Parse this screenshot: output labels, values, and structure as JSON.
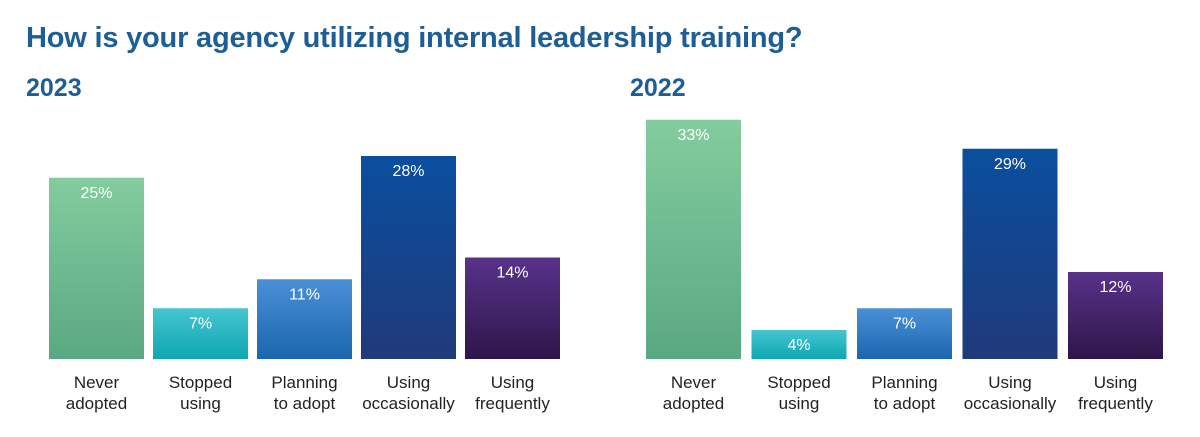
{
  "title": "How is your agency utilizing internal leadership training?",
  "colors": {
    "title": "#1d5e96",
    "never_adopted": [
      "#84cc9e",
      "#5aa883"
    ],
    "stopped_using": [
      "#45c6cf",
      "#0fa6b3"
    ],
    "planning_to_adopt": [
      "#4a90d6",
      "#1b66b0"
    ],
    "using_occasionally": [
      "#0a4f9f",
      "#203a7a"
    ],
    "using_frequently": [
      "#58328a",
      "#2e164a"
    ]
  },
  "chart_data": [
    {
      "type": "bar",
      "title": "2023",
      "categories": [
        [
          "Never",
          "adopted"
        ],
        [
          "Stopped",
          "using"
        ],
        [
          "Planning",
          "to adopt"
        ],
        [
          "Using",
          "occasionally"
        ],
        [
          "Using",
          "frequently"
        ]
      ],
      "values": [
        25,
        7,
        11,
        28,
        14
      ],
      "labels": [
        "25%",
        "7%",
        "11%",
        "28%",
        "14%"
      ],
      "unit": "%",
      "grid": false
    },
    {
      "type": "bar",
      "title": "2022",
      "categories": [
        [
          "Never",
          "adopted"
        ],
        [
          "Stopped",
          "using"
        ],
        [
          "Planning",
          "to adopt"
        ],
        [
          "Using",
          "occasionally"
        ],
        [
          "Using",
          "frequently"
        ]
      ],
      "values": [
        33,
        4,
        7,
        29,
        12
      ],
      "labels": [
        "33%",
        "4%",
        "7%",
        "29%",
        "12%"
      ],
      "unit": "%",
      "grid": false
    }
  ]
}
